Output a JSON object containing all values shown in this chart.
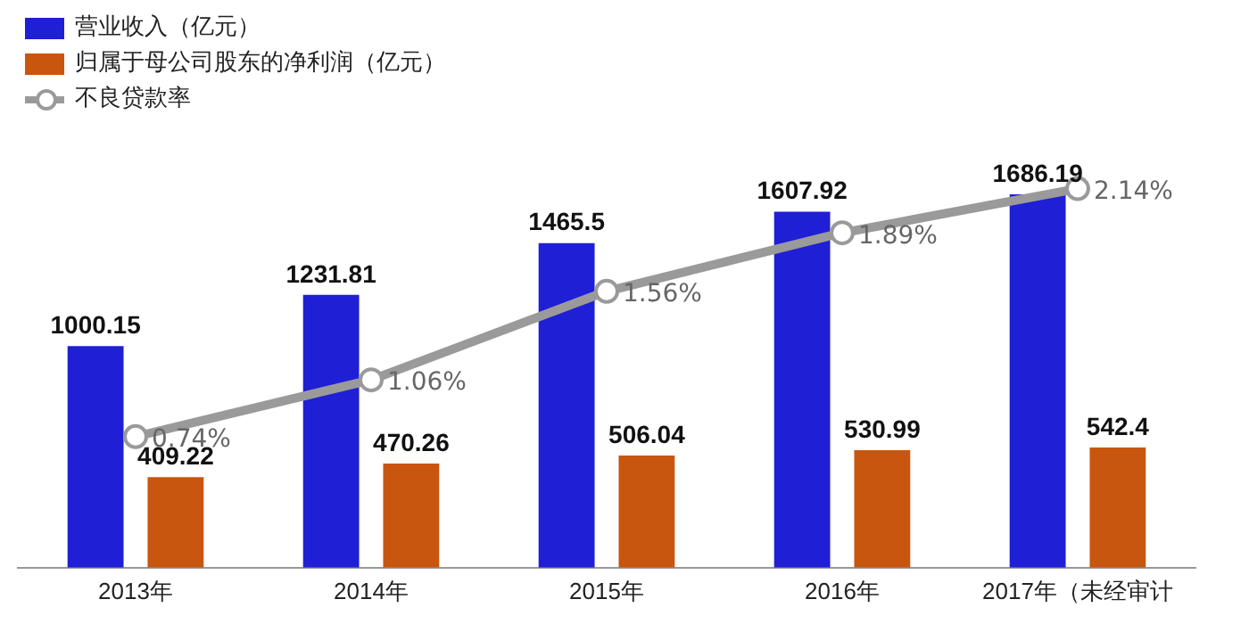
{
  "chart_data": {
    "type": "bar",
    "categories": [
      "2013年",
      "2014年",
      "2015年",
      "2016年",
      "2017年（未经审计"
    ],
    "series": [
      {
        "name": "营业收入（亿元）",
        "color": "#1f1fd6",
        "values": [
          1000.15,
          1231.81,
          1465.5,
          1607.92,
          1686.19
        ]
      },
      {
        "name": "归属于母公司股东的净利润（亿元）",
        "color": "#c9560f",
        "values": [
          409.22,
          470.26,
          506.04,
          530.99,
          542.4
        ]
      },
      {
        "name": "不良贷款率",
        "type": "line",
        "axis": "y2",
        "color": "#9a9a9a",
        "values": [
          0.74,
          1.06,
          1.56,
          1.89,
          2.14
        ],
        "value_labels": [
          "0.74%",
          "1.06%",
          "1.56%",
          "1.89%",
          "2.14%"
        ]
      }
    ],
    "data_labels": true,
    "legend": "top left",
    "grid": false,
    "tick_labels": "x",
    "marker": "circle"
  }
}
